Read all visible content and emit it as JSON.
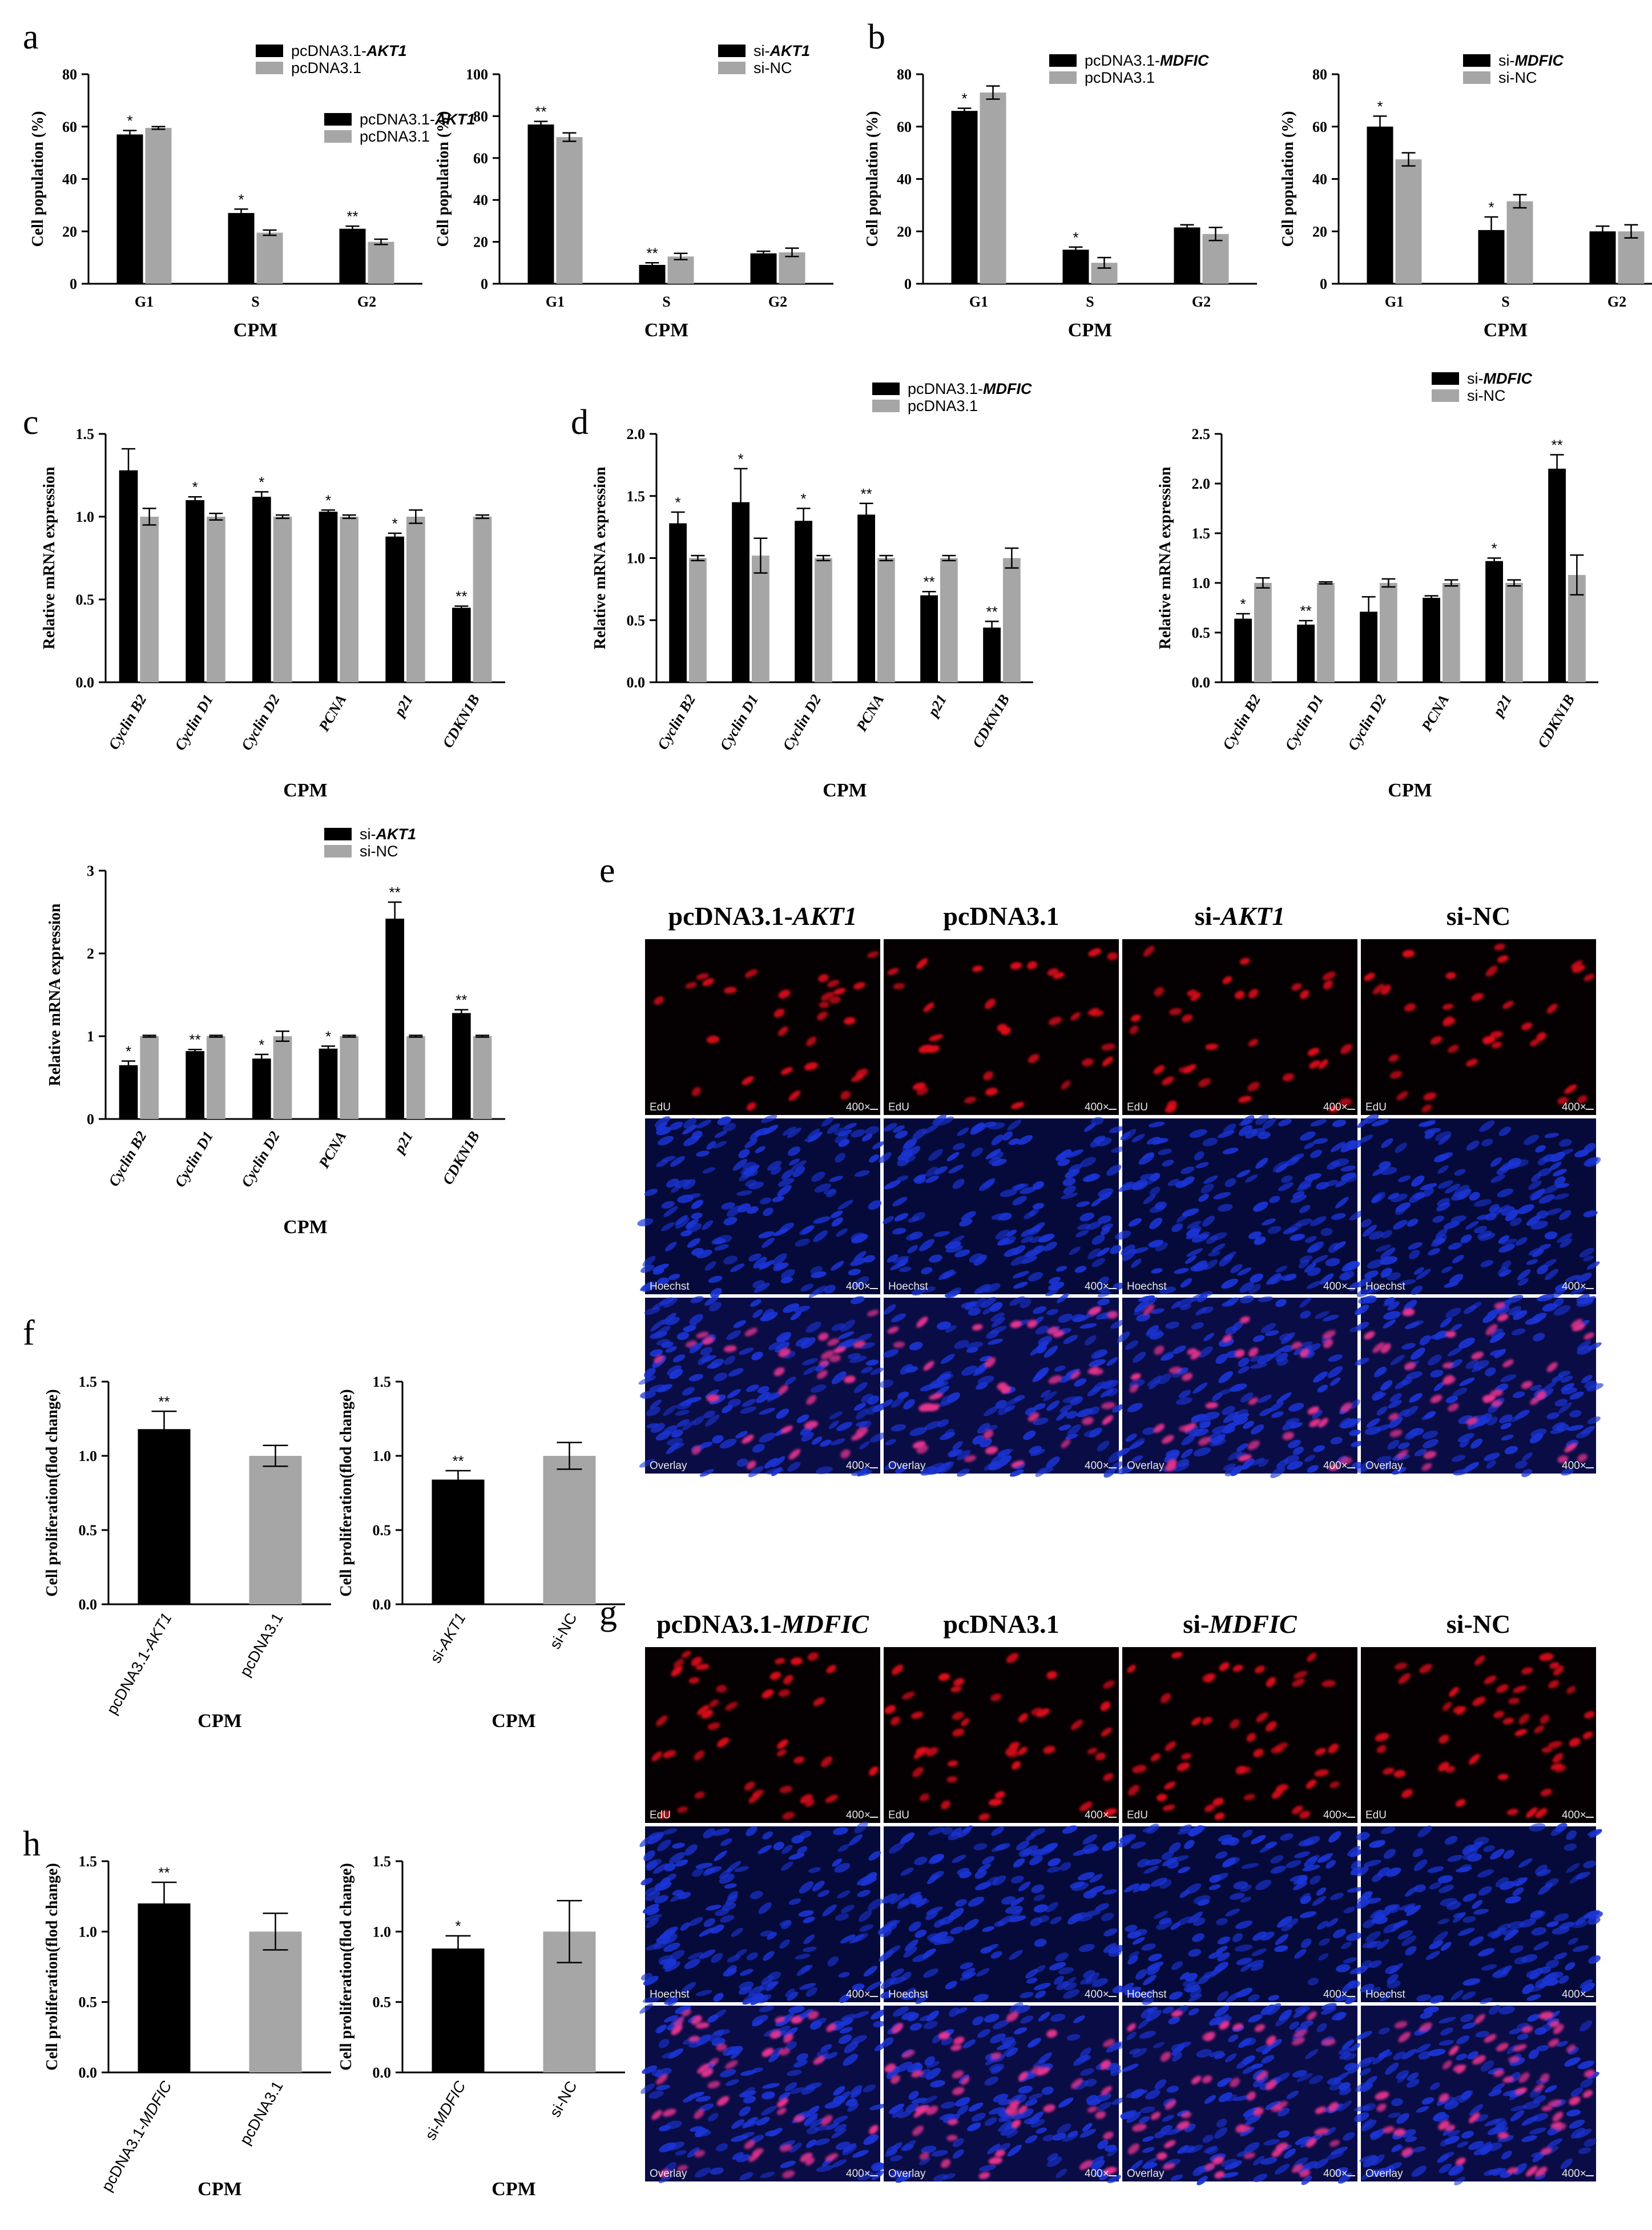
{
  "colors": {
    "treat": "#000000",
    "control": "#a6a6a6",
    "edu": "#e0101a",
    "hoechst": "#1b35d6"
  },
  "chart_data": [
    {
      "id": "a1",
      "panel": "a",
      "type": "bar",
      "xlabel": "CPM",
      "ylabel": "Cell population (%)",
      "ylim": [
        0,
        80
      ],
      "yticks": [
        "0",
        "20",
        "40",
        "60",
        "80"
      ],
      "categories": [
        "G1",
        "S",
        "G2"
      ],
      "series": [
        {
          "name": "pcDNA3.1-AKT1",
          "values": [
            57,
            27,
            21
          ],
          "err": [
            1.5,
            1.5,
            1
          ]
        },
        {
          "name": "pcDNA3.1",
          "values": [
            59.5,
            19.5,
            16
          ],
          "err": [
            0.5,
            1,
            1
          ]
        }
      ],
      "sig": [
        "*",
        "*",
        "**"
      ]
    },
    {
      "id": "a2",
      "panel": "",
      "type": "bar",
      "xlabel": "CPM",
      "ylabel": "Cell population (%)",
      "ylim": [
        0,
        100
      ],
      "yticks": [
        "0",
        "20",
        "40",
        "60",
        "80",
        "100"
      ],
      "categories": [
        "G1",
        "S",
        "G2"
      ],
      "series": [
        {
          "name": "si-AKT1",
          "values": [
            76,
            9,
            14.5
          ],
          "err": [
            1.5,
            1,
            1
          ]
        },
        {
          "name": "si-NC",
          "values": [
            70,
            13,
            15
          ],
          "err": [
            2,
            1.5,
            2
          ]
        }
      ],
      "sig": [
        "**",
        "**",
        ""
      ]
    },
    {
      "id": "b1",
      "panel": "b",
      "type": "bar",
      "xlabel": "CPM",
      "ylabel": "Cell population (%)",
      "ylim": [
        0,
        80
      ],
      "yticks": [
        "0",
        "20",
        "40",
        "60",
        "80"
      ],
      "categories": [
        "G1",
        "S",
        "G2"
      ],
      "series": [
        {
          "name": "pcDNA3.1-MDFIC",
          "values": [
            66,
            13,
            21.5
          ],
          "err": [
            1,
            1,
            1
          ]
        },
        {
          "name": "pcDNA3.1",
          "values": [
            73,
            8,
            19
          ],
          "err": [
            2.5,
            2,
            2.5
          ]
        }
      ],
      "sig": [
        "*",
        "*",
        ""
      ]
    },
    {
      "id": "b2",
      "panel": "",
      "type": "bar",
      "xlabel": "CPM",
      "ylabel": "Cell population (%)",
      "ylim": [
        0,
        80
      ],
      "yticks": [
        "0",
        "20",
        "40",
        "60",
        "80"
      ],
      "categories": [
        "G1",
        "S",
        "G2"
      ],
      "series": [
        {
          "name": "si-MDFIC",
          "values": [
            60,
            20.5,
            20
          ],
          "err": [
            4,
            5,
            2
          ]
        },
        {
          "name": "si-NC",
          "values": [
            47.5,
            31.5,
            20
          ],
          "err": [
            2.5,
            2.5,
            2.5
          ]
        }
      ],
      "sig": [
        "*",
        "*",
        ""
      ]
    },
    {
      "id": "c1",
      "panel": "c",
      "type": "bar",
      "xlabel": "CPM",
      "ylabel": "Relative mRNA expression",
      "ylim": [
        0,
        1.5
      ],
      "yticks": [
        "0.0",
        "0.5",
        "1.0",
        "1.5"
      ],
      "categories": [
        "Cyclin B2",
        "Cyclin D1",
        "Cyclin D2",
        "PCNA",
        "p21",
        "CDKN1B"
      ],
      "series": [
        {
          "name": "pcDNA3.1-AKT1",
          "values": [
            1.28,
            1.1,
            1.12,
            1.03,
            0.88,
            0.45
          ],
          "err": [
            0.13,
            0.02,
            0.03,
            0.01,
            0.02,
            0.01
          ]
        },
        {
          "name": "pcDNA3.1",
          "values": [
            1.0,
            1.0,
            1.0,
            1.0,
            1.0,
            1.0
          ],
          "err": [
            0.05,
            0.02,
            0.01,
            0.01,
            0.04,
            0.01
          ]
        }
      ],
      "sig": [
        "",
        "*",
        "*",
        "*",
        "*",
        "**"
      ]
    },
    {
      "id": "d1",
      "panel": "d",
      "type": "bar",
      "xlabel": "CPM",
      "ylabel": "Relative mRNA expression",
      "ylim": [
        0,
        2.0
      ],
      "yticks": [
        "0.0",
        "0.5",
        "1.0",
        "1.5",
        "2.0"
      ],
      "categories": [
        "Cyclin B2",
        "Cyclin D1",
        "Cyclin D2",
        "PCNA",
        "p21",
        "CDKN1B"
      ],
      "series": [
        {
          "name": "pcDNA3.1-MDFIC",
          "values": [
            1.28,
            1.45,
            1.3,
            1.35,
            0.7,
            0.44
          ],
          "err": [
            0.09,
            0.27,
            0.1,
            0.09,
            0.03,
            0.05
          ]
        },
        {
          "name": "pcDNA3.1",
          "values": [
            1.0,
            1.02,
            1.0,
            1.0,
            1.0,
            1.0
          ],
          "err": [
            0.02,
            0.14,
            0.02,
            0.02,
            0.02,
            0.08
          ]
        }
      ],
      "sig": [
        "*",
        "*",
        "*",
        "**",
        "**",
        "**"
      ]
    },
    {
      "id": "d2",
      "panel": "",
      "type": "bar",
      "xlabel": "CPM",
      "ylabel": "Relative mRNA expression",
      "ylim": [
        0,
        2.5
      ],
      "yticks": [
        "0.0",
        "0.5",
        "1.0",
        "1.5",
        "2.0",
        "2.5"
      ],
      "categories": [
        "Cyclin B2",
        "Cyclin D1",
        "Cyclin D2",
        "PCNA",
        "p21",
        "CDKN1B"
      ],
      "series": [
        {
          "name": "si-MDFIC",
          "values": [
            0.64,
            0.58,
            0.71,
            0.85,
            1.22,
            2.15
          ],
          "err": [
            0.05,
            0.04,
            0.15,
            0.02,
            0.03,
            0.14
          ]
        },
        {
          "name": "si-NC",
          "values": [
            1.0,
            1.0,
            1.0,
            1.0,
            1.0,
            1.08
          ],
          "err": [
            0.05,
            0.01,
            0.04,
            0.03,
            0.03,
            0.2
          ]
        }
      ],
      "sig": [
        "*",
        "**",
        "",
        "",
        "*",
        "**"
      ]
    },
    {
      "id": "c2",
      "panel": "",
      "type": "bar",
      "xlabel": "CPM",
      "ylabel": "Relative mRNA expression",
      "ylim": [
        0,
        3
      ],
      "yticks": [
        "0",
        "1",
        "2",
        "3"
      ],
      "categories": [
        "Cyclin B2",
        "Cyclin D1",
        "Cyclin D2",
        "PCNA",
        "p21",
        "CDKN1B"
      ],
      "series": [
        {
          "name": "si-AKT1",
          "values": [
            0.65,
            0.82,
            0.73,
            0.85,
            2.42,
            1.28
          ],
          "err": [
            0.05,
            0.02,
            0.05,
            0.03,
            0.2,
            0.04
          ]
        },
        {
          "name": "si-NC",
          "values": [
            1.0,
            1.0,
            1.0,
            1.0,
            1.0,
            1.0
          ],
          "err": [
            0.01,
            0.01,
            0.06,
            0.01,
            0.01,
            0.01
          ]
        }
      ],
      "sig": [
        "*",
        "**",
        "*",
        "*",
        "**",
        "**"
      ]
    },
    {
      "id": "f1",
      "panel": "f",
      "type": "bar",
      "xlabel": "CPM",
      "ylabel": "Cell proliferation(flod change)",
      "ylim": [
        0,
        1.5
      ],
      "yticks": [
        "0.0",
        "0.5",
        "1.0",
        "1.5"
      ],
      "categories": [
        "pcDNA3.1-AKT1",
        "pcDNA3.1"
      ],
      "values": [
        1.18,
        1.0
      ],
      "err": [
        0.12,
        0.07
      ],
      "sig": [
        "**",
        ""
      ]
    },
    {
      "id": "f2",
      "panel": "",
      "type": "bar",
      "xlabel": "CPM",
      "ylabel": "Cell proliferation(flod change)",
      "ylim": [
        0,
        1.5
      ],
      "yticks": [
        "0.0",
        "0.5",
        "1.0",
        "1.5"
      ],
      "categories": [
        "si-AKT1",
        "si-NC"
      ],
      "values": [
        0.84,
        1.0
      ],
      "err": [
        0.06,
        0.09
      ],
      "sig": [
        "**",
        ""
      ]
    },
    {
      "id": "h1",
      "panel": "h",
      "type": "bar",
      "xlabel": "CPM",
      "ylabel": "Cell proliferation(flod change)",
      "ylim": [
        0,
        1.5
      ],
      "yticks": [
        "0.0",
        "0.5",
        "1.0",
        "1.5"
      ],
      "categories": [
        "pcDNA3.1-MDFIC",
        "pcDNA3.1"
      ],
      "values": [
        1.2,
        1.0
      ],
      "err": [
        0.15,
        0.13
      ],
      "sig": [
        "**",
        ""
      ]
    },
    {
      "id": "h2",
      "panel": "",
      "type": "bar",
      "xlabel": "CPM",
      "ylabel": "Cell proliferation(flod change)",
      "ylim": [
        0,
        1.5
      ],
      "yticks": [
        "0.0",
        "0.5",
        "1.0",
        "1.5"
      ],
      "categories": [
        "si-MDFIC",
        "si-NC"
      ],
      "values": [
        0.88,
        1.0
      ],
      "err": [
        0.09,
        0.22
      ],
      "sig": [
        "*",
        ""
      ]
    }
  ],
  "micrographs": [
    {
      "panel": "e",
      "headers": [
        "pcDNA3.1-",
        "AKT1",
        "pcDNA3.1",
        "",
        "si-",
        "AKT1",
        "si-NC",
        ""
      ],
      "columns": [
        {
          "prefix": "pcDNA3.1-",
          "italic": "AKT1"
        },
        {
          "prefix": "pcDNA3.1",
          "italic": ""
        },
        {
          "prefix": "si-",
          "italic": "AKT1"
        },
        {
          "prefix": "si-NC",
          "italic": ""
        }
      ],
      "rows": [
        "EdU",
        "Hoechst",
        "Overlay"
      ],
      "magnification": "400×"
    },
    {
      "panel": "g",
      "columns": [
        {
          "prefix": "pcDNA3.1-",
          "italic": "MDFIC"
        },
        {
          "prefix": "pcDNA3.1",
          "italic": ""
        },
        {
          "prefix": "si-",
          "italic": "MDFIC"
        },
        {
          "prefix": "si-NC",
          "italic": ""
        }
      ],
      "rows": [
        "EdU",
        "Hoechst",
        "Overlay"
      ],
      "magnification": "400×"
    }
  ]
}
